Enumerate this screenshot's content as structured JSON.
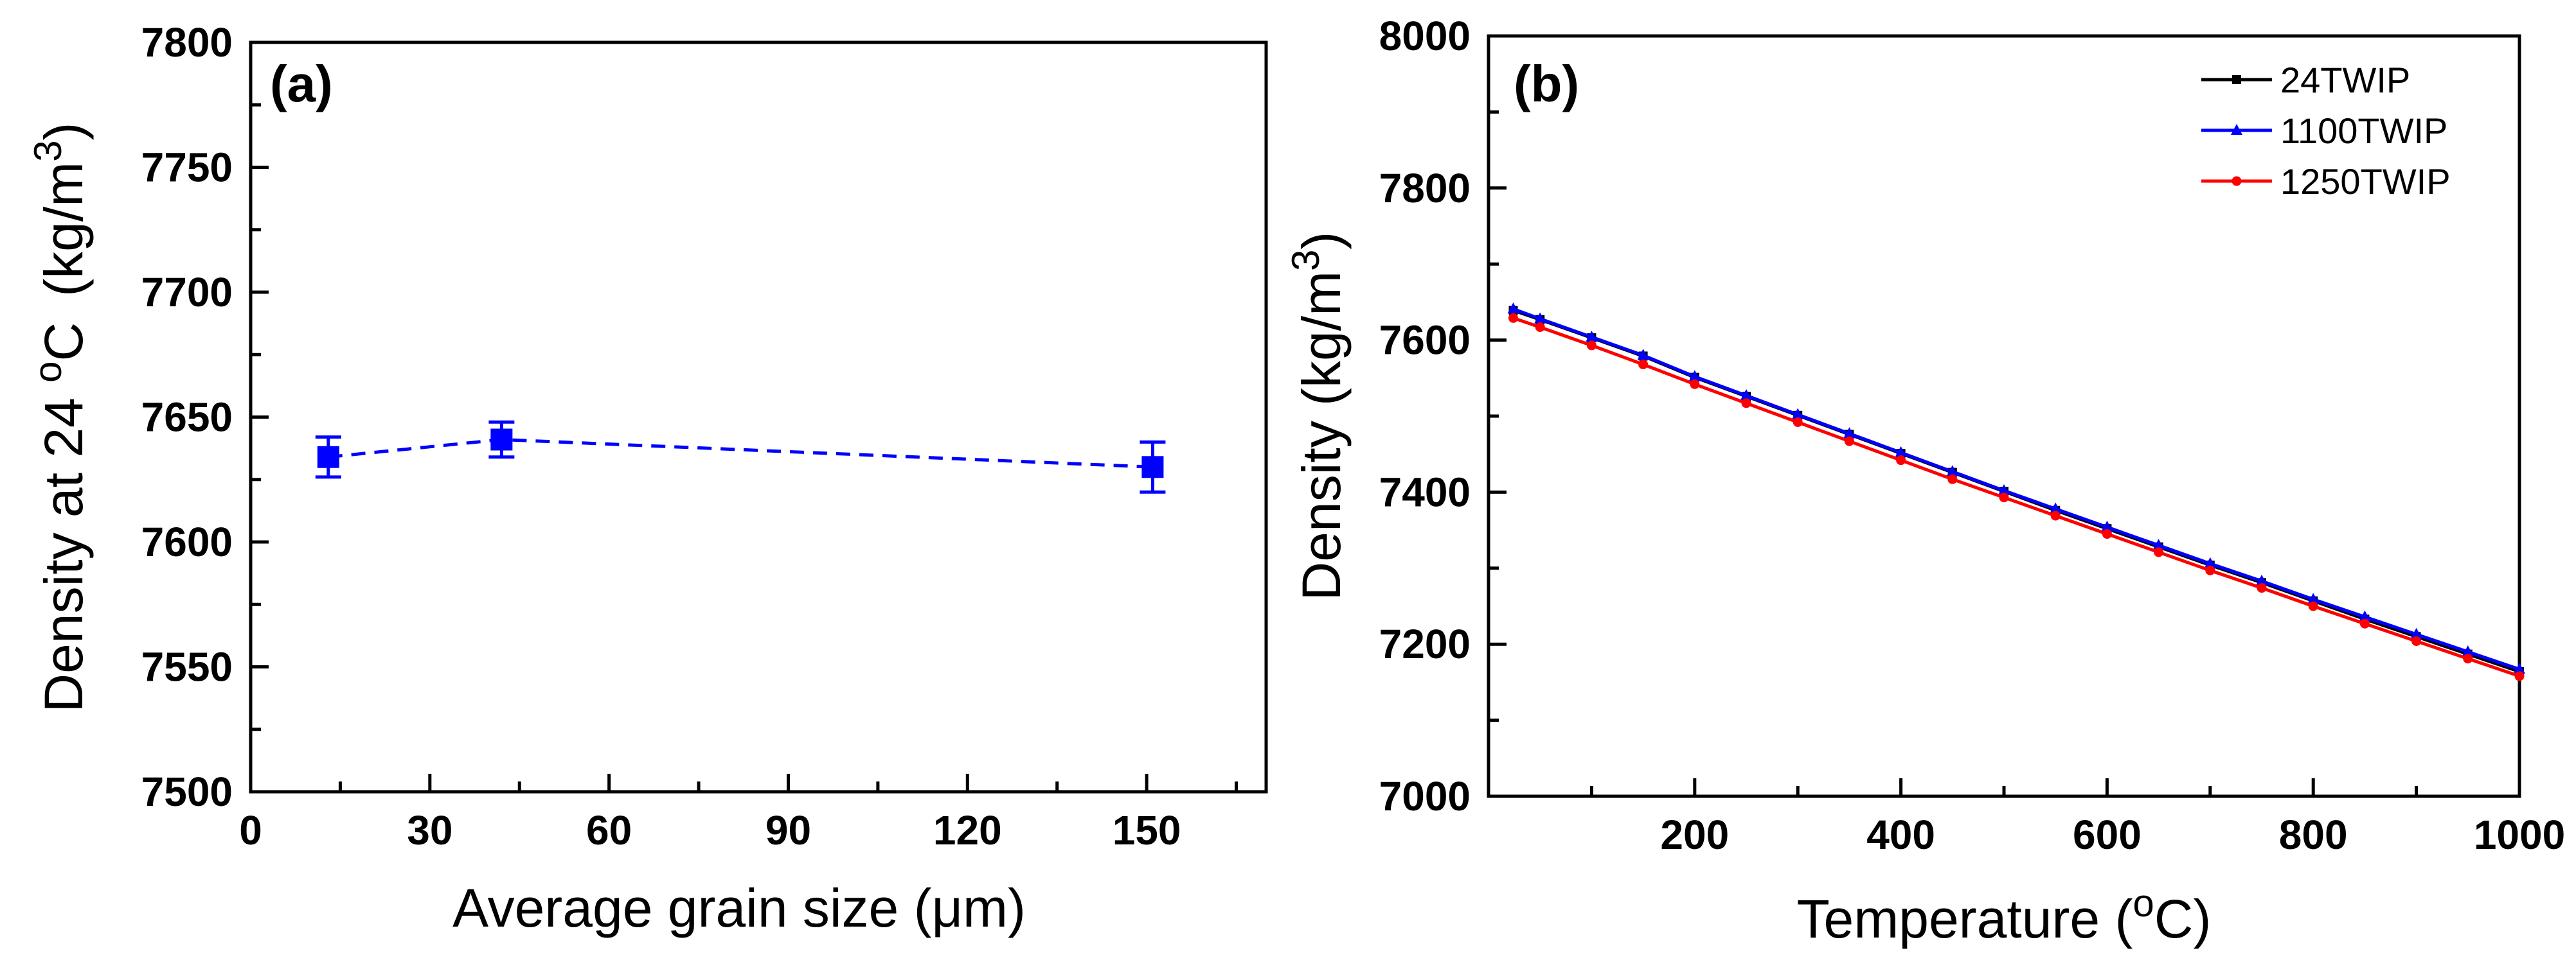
{
  "chart_data": [
    {
      "type": "scatter",
      "panel_label": "(a)",
      "xlabel_prefix": "Average grain size (",
      "xlabel_unit": "μm",
      "xlabel_suffix": ")",
      "ylabel_text": "Density at 24 ",
      "ylabel_degree": "o",
      "ylabel_C": "C",
      "ylabel_unit": "(kg/m",
      "ylabel_exp": "3",
      "ylabel_close": ")",
      "xlim": [
        0,
        170
      ],
      "ylim": [
        7500,
        7800
      ],
      "xticks": [
        0,
        30,
        60,
        90,
        120,
        150
      ],
      "yticks": [
        7500,
        7550,
        7600,
        7650,
        7700,
        7750,
        7800
      ],
      "color": "#0000ff",
      "line_style": "dashed",
      "x": [
        13,
        42,
        151
      ],
      "y": [
        7634,
        7641,
        7630
      ],
      "yerr": [
        8,
        7,
        10
      ]
    },
    {
      "type": "line",
      "panel_label": "(b)",
      "xlabel_prefix": "Temperature (",
      "xlabel_degree": "o",
      "xlabel_unit": "C)",
      "ylabel_text": "Density (kg/m",
      "ylabel_exp": "3",
      "ylabel_close": ")",
      "xlim": [
        0,
        1000
      ],
      "ylim": [
        7000,
        8000
      ],
      "xticks": [
        200,
        400,
        600,
        800,
        1000
      ],
      "yticks": [
        7000,
        7200,
        7400,
        7600,
        7800,
        8000
      ],
      "legend_position": "top-right",
      "series": [
        {
          "name": "24TWIP",
          "color": "#000000",
          "marker": "square",
          "x": [
            24,
            50,
            100,
            150,
            200,
            250,
            300,
            350,
            400,
            450,
            500,
            550,
            600,
            650,
            700,
            750,
            800,
            850,
            900,
            950,
            1000
          ],
          "y": [
            7639,
            7627,
            7603,
            7579,
            7551,
            7526,
            7501,
            7476,
            7451,
            7426,
            7401,
            7376,
            7352,
            7328,
            7304,
            7281,
            7257,
            7233,
            7210,
            7187,
            7164
          ]
        },
        {
          "name": "1100TWIP",
          "color": "#0000ff",
          "marker": "triangle",
          "x": [
            24,
            50,
            100,
            150,
            200,
            250,
            300,
            350,
            400,
            450,
            500,
            550,
            600,
            650,
            700,
            750,
            800,
            850,
            900,
            950,
            1000
          ],
          "y": [
            7641,
            7628,
            7604,
            7580,
            7552,
            7527,
            7502,
            7477,
            7452,
            7427,
            7402,
            7378,
            7354,
            7330,
            7306,
            7283,
            7259,
            7236,
            7213,
            7190,
            7167
          ]
        },
        {
          "name": "1250TWIP",
          "color": "#ff0000",
          "marker": "circle",
          "x": [
            24,
            50,
            100,
            150,
            200,
            250,
            300,
            350,
            400,
            450,
            500,
            550,
            600,
            650,
            700,
            750,
            800,
            850,
            900,
            950,
            1000
          ],
          "y": [
            7629,
            7617,
            7593,
            7568,
            7542,
            7517,
            7492,
            7467,
            7442,
            7417,
            7393,
            7369,
            7345,
            7321,
            7297,
            7274,
            7250,
            7227,
            7204,
            7181,
            7158
          ]
        }
      ]
    }
  ]
}
